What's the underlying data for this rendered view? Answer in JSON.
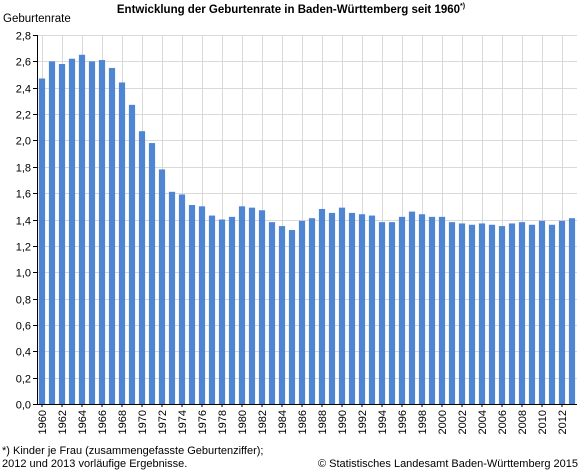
{
  "chart_data": {
    "type": "bar",
    "title": "Entwicklung der Geburtenrate in Baden-Württemberg seit 1960",
    "title_marker": "*)",
    "ylabel": "Geburtenrate",
    "ylim": [
      0,
      2.8
    ],
    "y_ticks": [
      "0,0",
      "0,2",
      "0,4",
      "0,6",
      "0,8",
      "1,0",
      "1,2",
      "1,4",
      "1,6",
      "1,8",
      "2,0",
      "2,2",
      "2,4",
      "2,6",
      "2,8"
    ],
    "grid": true,
    "bar_color": "#4f86d4",
    "categories": [
      "1960",
      "1961",
      "1962",
      "1963",
      "1964",
      "1965",
      "1966",
      "1967",
      "1968",
      "1969",
      "1970",
      "1971",
      "1972",
      "1973",
      "1974",
      "1975",
      "1976",
      "1977",
      "1978",
      "1979",
      "1980",
      "1981",
      "1982",
      "1983",
      "1984",
      "1985",
      "1986",
      "1987",
      "1988",
      "1989",
      "1990",
      "1991",
      "1992",
      "1993",
      "1994",
      "1995",
      "1996",
      "1997",
      "1998",
      "1999",
      "2000",
      "2001",
      "2002",
      "2003",
      "2004",
      "2005",
      "2006",
      "2007",
      "2008",
      "2009",
      "2010",
      "2011",
      "2012",
      "2013"
    ],
    "x_tick_labels": [
      "1960",
      "1962",
      "1964",
      "1966",
      "1968",
      "1970",
      "1972",
      "1974",
      "1976",
      "1978",
      "1980",
      "1982",
      "1984",
      "1986",
      "1988",
      "1990",
      "1992",
      "1994",
      "1996",
      "1998",
      "2000",
      "2002",
      "2004",
      "2006",
      "2008",
      "2010",
      "2012"
    ],
    "values": [
      2.47,
      2.6,
      2.58,
      2.62,
      2.65,
      2.6,
      2.61,
      2.55,
      2.44,
      2.27,
      2.07,
      1.98,
      1.78,
      1.61,
      1.59,
      1.51,
      1.5,
      1.43,
      1.4,
      1.42,
      1.5,
      1.49,
      1.47,
      1.38,
      1.35,
      1.32,
      1.39,
      1.41,
      1.48,
      1.45,
      1.49,
      1.45,
      1.44,
      1.43,
      1.38,
      1.38,
      1.42,
      1.46,
      1.44,
      1.42,
      1.42,
      1.38,
      1.37,
      1.36,
      1.37,
      1.36,
      1.35,
      1.37,
      1.38,
      1.36,
      1.39,
      1.36,
      1.39,
      1.41
    ]
  },
  "footnote": {
    "line1": "*) Kinder je Frau (zusammengefasste Geburtenziffer);",
    "line2": "2012 und 2013 vorläufige Ergebnisse."
  },
  "source": "© Statistisches Landesamt Baden-Württemberg 2015"
}
